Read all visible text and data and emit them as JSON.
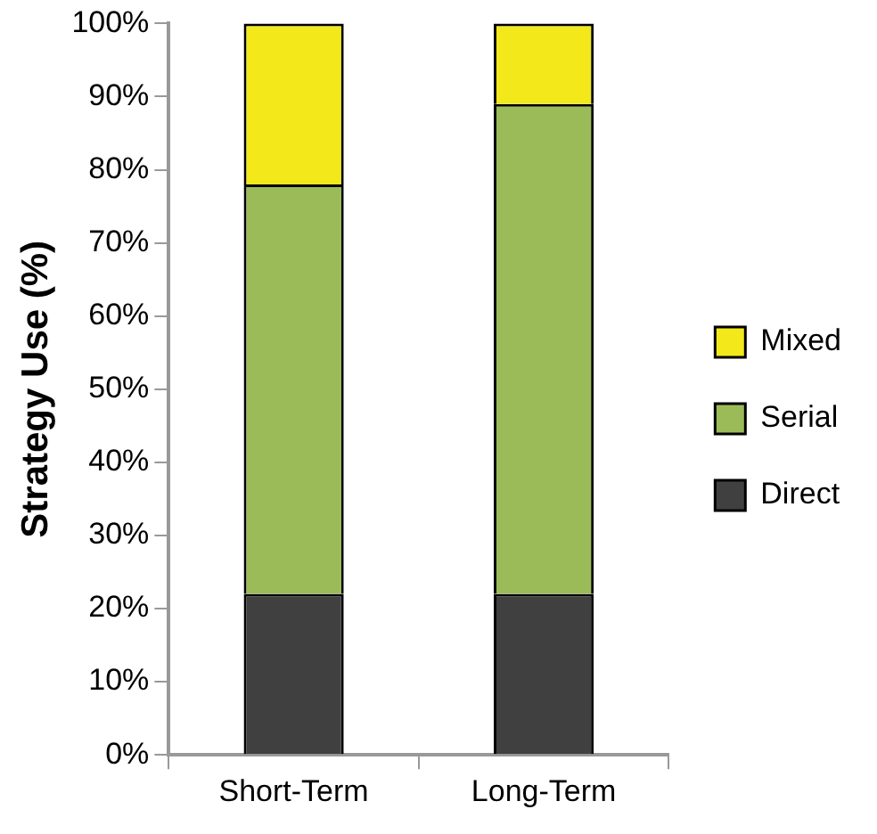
{
  "chart_data": {
    "type": "bar",
    "stacked": true,
    "ylabel": "Strategy Use (%)",
    "categories": [
      "Short-Term",
      "Long-Term"
    ],
    "series": [
      {
        "name": "Direct",
        "color": "#404040",
        "values": [
          22,
          22
        ]
      },
      {
        "name": "Serial",
        "color": "#9bbb59",
        "values": [
          56,
          67
        ]
      },
      {
        "name": "Mixed",
        "color": "#f2e81a",
        "values": [
          22,
          11
        ]
      }
    ],
    "ylim": [
      0,
      100
    ],
    "yticks": [
      {
        "value": 0,
        "label": "0%"
      },
      {
        "value": 10,
        "label": "10%"
      },
      {
        "value": 20,
        "label": "20%"
      },
      {
        "value": 30,
        "label": "30%"
      },
      {
        "value": 40,
        "label": "40%"
      },
      {
        "value": 50,
        "label": "50%"
      },
      {
        "value": 60,
        "label": "60%"
      },
      {
        "value": 70,
        "label": "70%"
      },
      {
        "value": 80,
        "label": "80%"
      },
      {
        "value": 90,
        "label": "90%"
      },
      {
        "value": 100,
        "label": "100%"
      }
    ],
    "grid": false,
    "legend": "right"
  }
}
